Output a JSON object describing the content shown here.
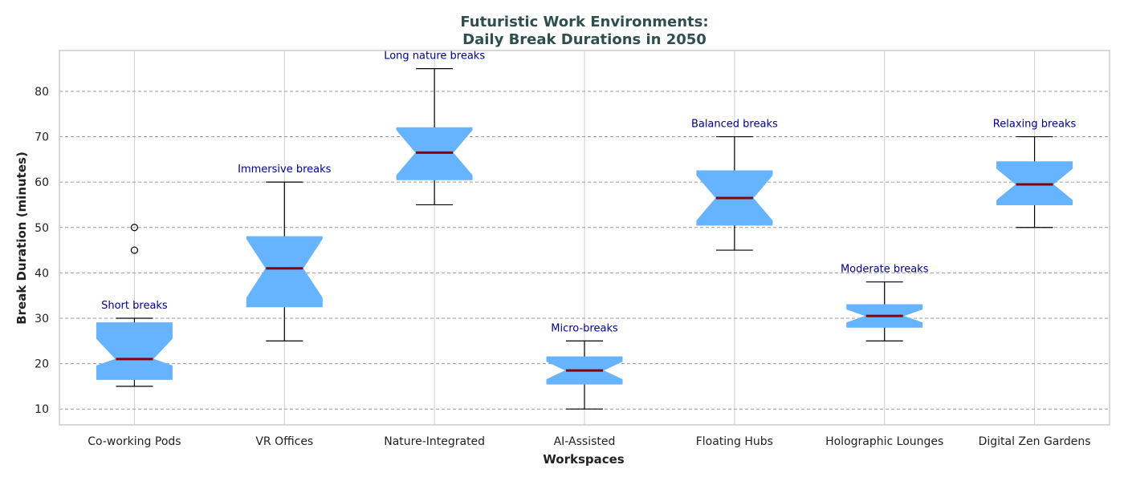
{
  "chart_data": {
    "type": "boxplot",
    "title_line1": "Futuristic Work Environments:",
    "title_line2": "Daily Break Durations in 2050",
    "xlabel": "Workspaces",
    "ylabel": "Break Duration (minutes)",
    "ylim": [
      6.5,
      89
    ],
    "yticks": [
      10,
      20,
      30,
      40,
      50,
      60,
      70,
      80
    ],
    "grid": {
      "x": true,
      "y": true,
      "y_style": "dashed"
    },
    "notched": true,
    "colors": {
      "box_fill": "#66b3ff",
      "median": "#8b0000",
      "whisker": "#000000",
      "annotation": "#00008b",
      "title": "#2f4f4f",
      "grid_y": "#999999",
      "grid_x": "#d0d0d0",
      "frame": "#cccccc"
    },
    "categories": [
      "Co-working Pods",
      "VR Offices",
      "Nature-Integrated",
      "AI-Assisted",
      "Floating Hubs",
      "Holographic Lounges",
      "Digital Zen Gardens"
    ],
    "boxes": [
      {
        "category": "Co-working Pods",
        "whislo": 15,
        "q1": 16.5,
        "notch_lo": 19.5,
        "med": 21,
        "notch_hi": 25.5,
        "q3": 29,
        "whishi": 30,
        "fliers": [
          45,
          50
        ],
        "annotation": "Short breaks"
      },
      {
        "category": "VR Offices",
        "whislo": 25,
        "q1": 32.5,
        "notch_lo": 34.5,
        "med": 41,
        "notch_hi": 47.5,
        "q3": 48,
        "whishi": 60,
        "fliers": [],
        "annotation": "Immersive breaks"
      },
      {
        "category": "Nature-Integrated",
        "whislo": 55,
        "q1": 60.5,
        "notch_lo": 61.5,
        "med": 66.5,
        "notch_hi": 71.5,
        "q3": 72,
        "whishi": 85,
        "fliers": [],
        "annotation": "Long nature breaks"
      },
      {
        "category": "AI-Assisted",
        "whislo": 10,
        "q1": 15.5,
        "notch_lo": 16.5,
        "med": 18.5,
        "notch_hi": 20.5,
        "q3": 21.5,
        "whishi": 25,
        "fliers": [],
        "annotation": "Micro-breaks"
      },
      {
        "category": "Floating Hubs",
        "whislo": 45,
        "q1": 50.5,
        "notch_lo": 51.5,
        "med": 56.5,
        "notch_hi": 61.5,
        "q3": 62.5,
        "whishi": 70,
        "fliers": [],
        "annotation": "Balanced breaks"
      },
      {
        "category": "Holographic Lounges",
        "whislo": 25,
        "q1": 28,
        "notch_lo": 29,
        "med": 30.5,
        "notch_hi": 32,
        "q3": 33,
        "whishi": 38,
        "fliers": [],
        "annotation": "Moderate breaks"
      },
      {
        "category": "Digital Zen Gardens",
        "whislo": 50,
        "q1": 55,
        "notch_lo": 56,
        "med": 59.5,
        "notch_hi": 63,
        "q3": 64.5,
        "whishi": 70,
        "fliers": [],
        "annotation": "Relaxing breaks"
      }
    ]
  }
}
